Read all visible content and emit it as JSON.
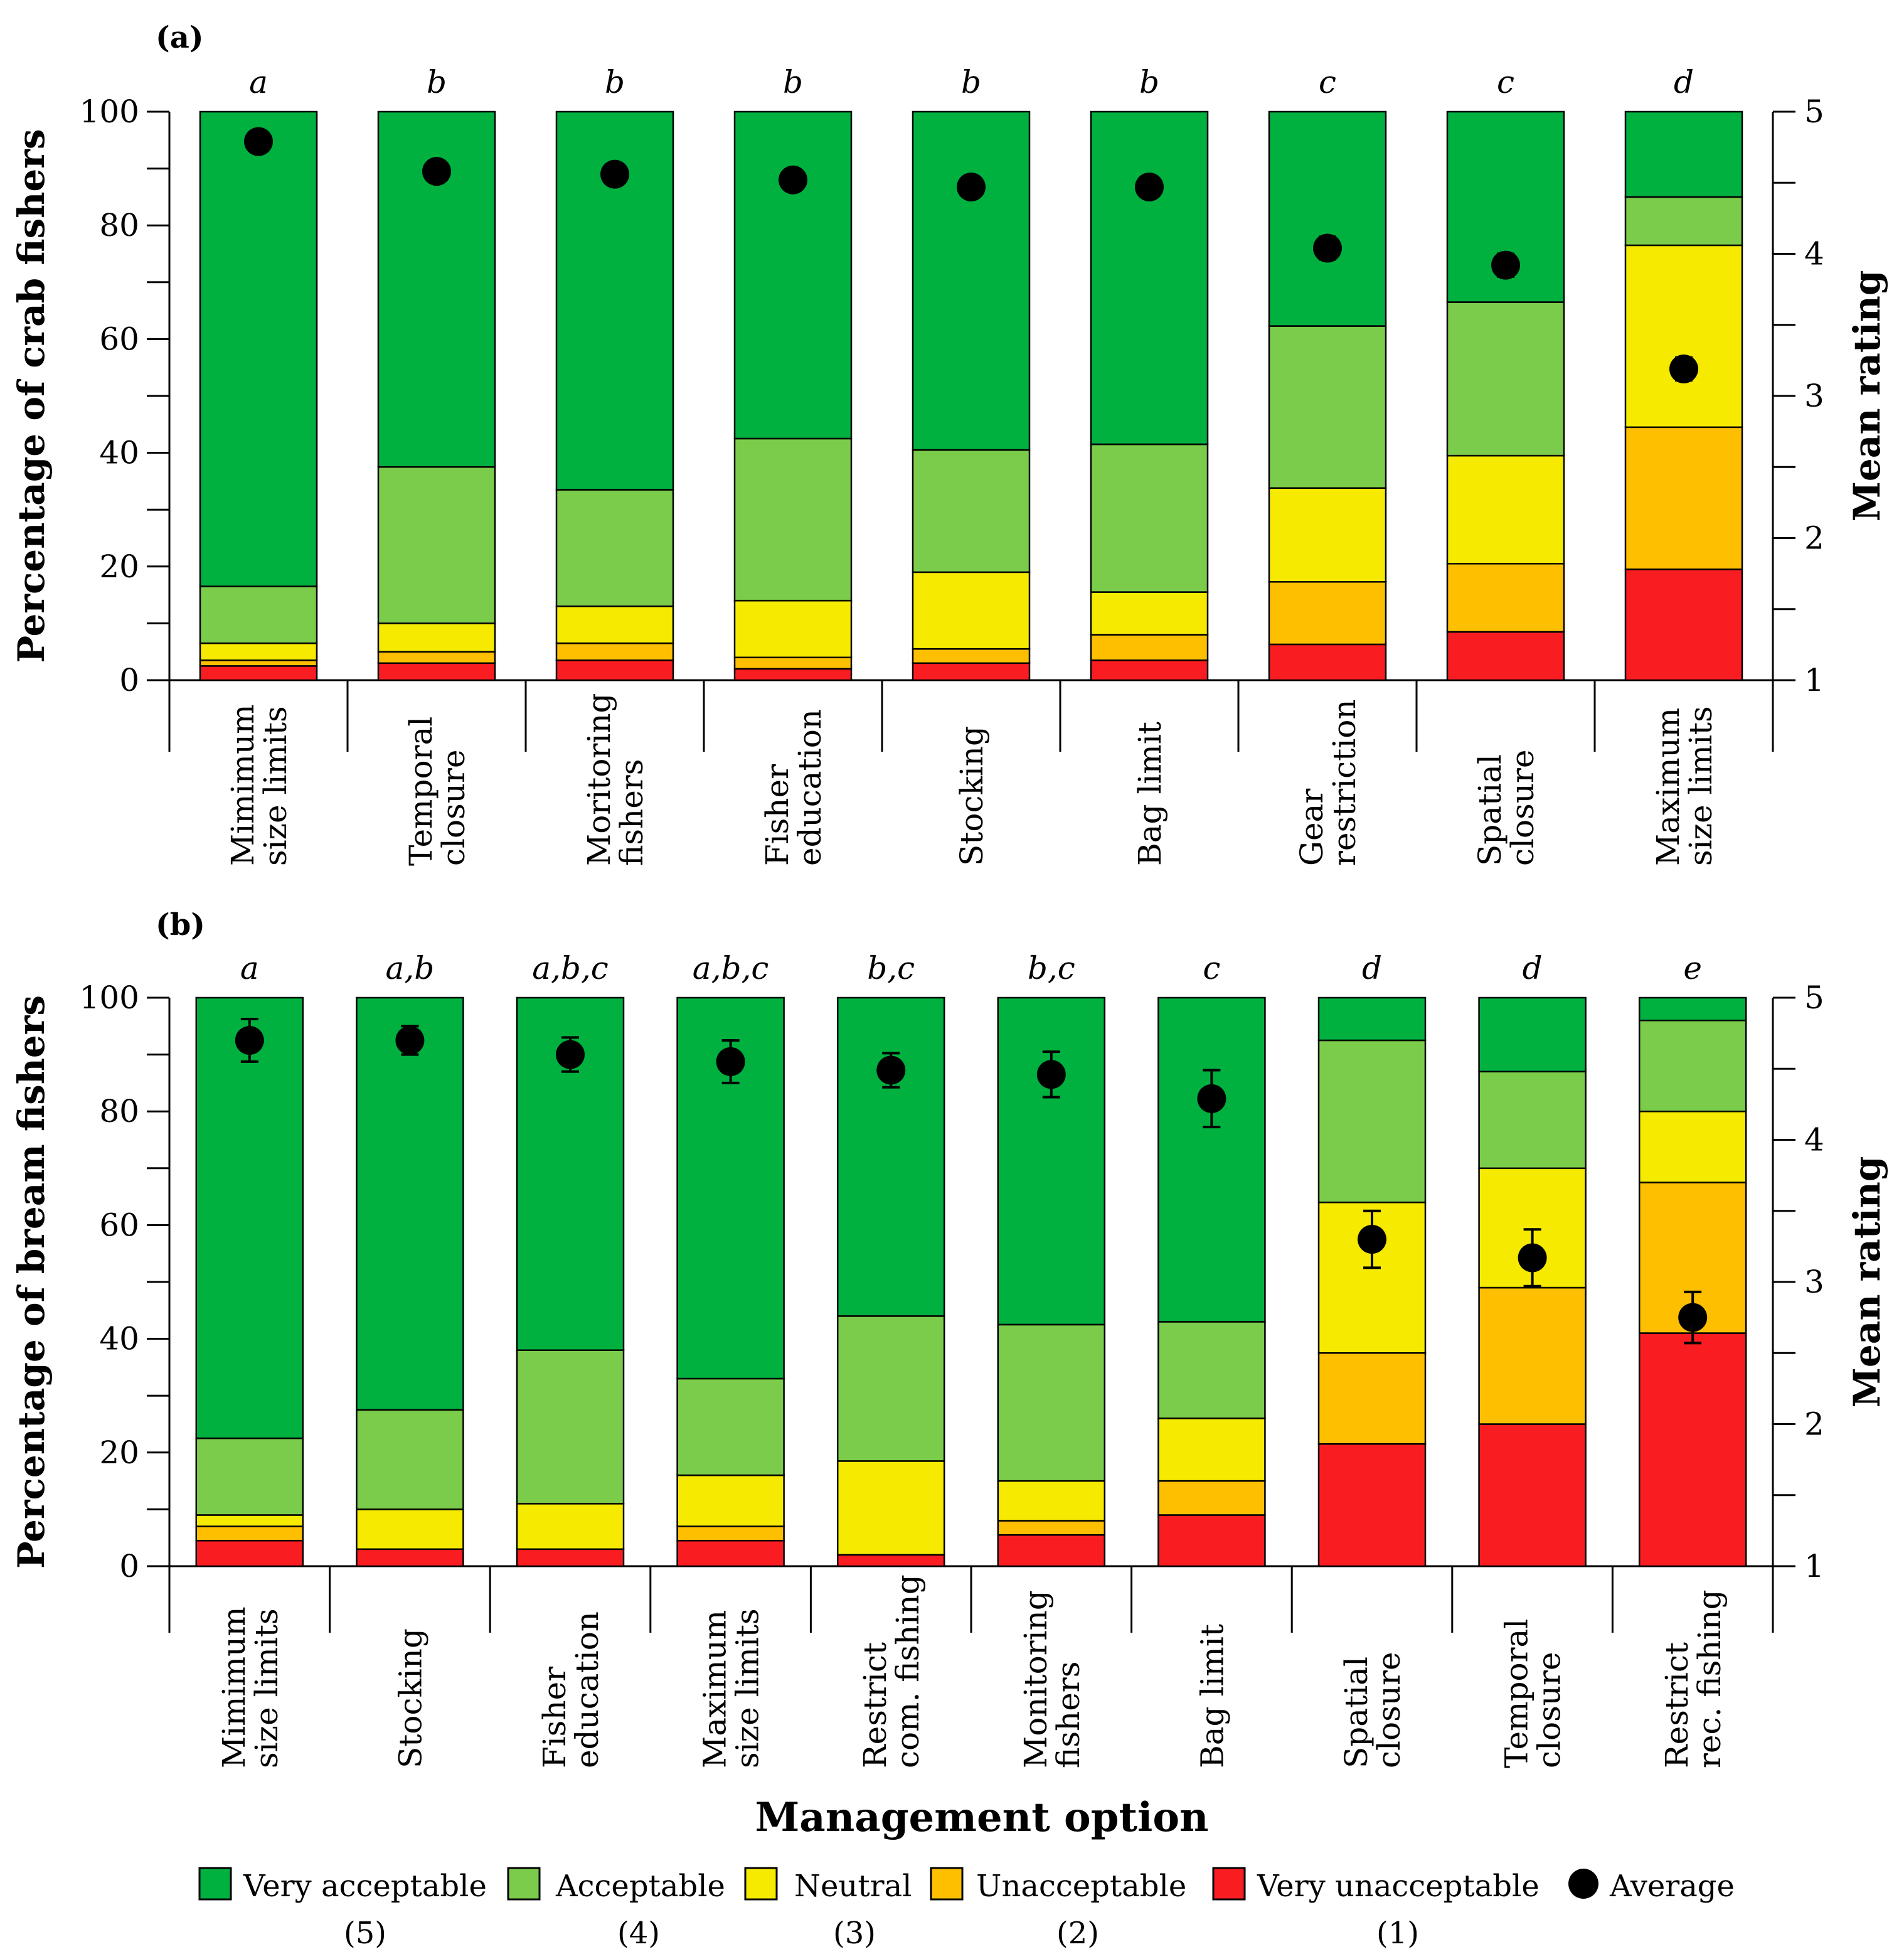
{
  "figure": {
    "x_title": "Management option",
    "legend": [
      {
        "label": "Very acceptable",
        "sub": "(5)",
        "color": "#00b140"
      },
      {
        "label": "Acceptable",
        "sub": "(4)",
        "color": "#7acc4a"
      },
      {
        "label": "Neutral",
        "sub": "(3)",
        "color": "#f6ea00"
      },
      {
        "label": "Unacceptable",
        "sub": "(2)",
        "color": "#fdbf00"
      },
      {
        "label": "Very unacceptable",
        "sub": "(1)",
        "color": "#f91d22"
      },
      {
        "label": "Average",
        "sub": "",
        "color": "#000000"
      }
    ]
  },
  "chart_data": [
    {
      "type": "bar",
      "panel_label": "(a)",
      "ylabel": "Percentage of crab fishers",
      "ylabel_right": "Mean rating",
      "ylim": [
        0,
        100
      ],
      "y2lim": [
        1,
        5
      ],
      "yticks": [
        "0",
        "20",
        "40",
        "60",
        "80",
        "100"
      ],
      "y2ticks": [
        "1",
        "2",
        "3",
        "4",
        "5"
      ],
      "categories": [
        [
          "Mimimum",
          "size limits"
        ],
        [
          "Temporal",
          "closure"
        ],
        [
          "Moritoring",
          "fishers"
        ],
        [
          "Fisher",
          "education"
        ],
        [
          "Stocking"
        ],
        [
          "Bag limit"
        ],
        [
          "Gear",
          "restriction"
        ],
        [
          "Spatial",
          "closure"
        ],
        [
          "Maximum",
          "size limits"
        ]
      ],
      "letters": [
        "a",
        "b",
        "b",
        "b",
        "b",
        "b",
        "c",
        "c",
        "d"
      ],
      "series": [
        {
          "name": "Very unacceptable",
          "values": [
            2.5,
            3,
            3.5,
            2,
            3,
            3.5,
            6.3,
            8.5,
            19.5
          ]
        },
        {
          "name": "Unacceptable",
          "values": [
            1,
            2,
            3,
            2,
            2.5,
            4.5,
            11,
            12,
            25
          ]
        },
        {
          "name": "Neutral",
          "values": [
            3,
            5,
            6.5,
            10,
            13.5,
            7.5,
            16.5,
            19,
            32
          ]
        },
        {
          "name": "Acceptable",
          "values": [
            10,
            27.5,
            20.5,
            28.5,
            21.5,
            26,
            28.5,
            27,
            8.5
          ]
        },
        {
          "name": "Very acceptable",
          "values": [
            83.5,
            62.5,
            66.5,
            57.5,
            59.5,
            58.5,
            37.7,
            33.5,
            15
          ]
        }
      ],
      "mean": [
        4.79,
        4.58,
        4.56,
        4.52,
        4.47,
        4.47,
        4.04,
        3.92,
        3.19
      ],
      "mean_err": [
        0.03,
        0.04,
        0.04,
        0.04,
        0.04,
        0.04,
        0.08,
        0.08,
        0.08
      ]
    },
    {
      "type": "bar",
      "panel_label": "(b)",
      "ylabel": "Percentage of bream fishers",
      "ylabel_right": "Mean rating",
      "ylim": [
        0,
        100
      ],
      "y2lim": [
        1,
        5
      ],
      "yticks": [
        "0",
        "20",
        "40",
        "60",
        "80",
        "100"
      ],
      "y2ticks": [
        "1",
        "2",
        "3",
        "4",
        "5"
      ],
      "categories": [
        [
          "Mimimum",
          "size limits"
        ],
        [
          "Stocking"
        ],
        [
          "Fisher",
          "education"
        ],
        [
          "Maximum",
          "size limits"
        ],
        [
          "Restrict",
          "com. fishing"
        ],
        [
          "Monitoring",
          "fishers"
        ],
        [
          "Bag limit"
        ],
        [
          "Spatial",
          "closure"
        ],
        [
          "Temporal",
          "closure"
        ],
        [
          "Restrict",
          "rec. fishing"
        ]
      ],
      "letters": [
        "a",
        "a,b",
        "a,b,c",
        "a,b,c",
        "b,c",
        "b,c",
        "c",
        "d",
        "d",
        "e"
      ],
      "series": [
        {
          "name": "Very unacceptable",
          "values": [
            4.5,
            3,
            3,
            4.5,
            2,
            5.5,
            9,
            21.5,
            25,
            41
          ]
        },
        {
          "name": "Unacceptable",
          "values": [
            2.5,
            0,
            0,
            2.5,
            0,
            2.5,
            6,
            16,
            24,
            26.5
          ]
        },
        {
          "name": "Neutral",
          "values": [
            2,
            7,
            8,
            9,
            16.5,
            7,
            11,
            26.5,
            21,
            12.5
          ]
        },
        {
          "name": "Acceptable",
          "values": [
            13.5,
            17.5,
            27,
            17,
            25.5,
            27.5,
            17,
            28.5,
            17,
            16
          ]
        },
        {
          "name": "Very acceptable",
          "values": [
            77.5,
            72.5,
            62,
            67,
            56,
            57.5,
            57,
            7.5,
            13,
            4
          ]
        }
      ],
      "mean": [
        4.7,
        4.7,
        4.6,
        4.55,
        4.49,
        4.46,
        4.29,
        3.3,
        3.17,
        2.75
      ],
      "mean_err": [
        0.15,
        0.1,
        0.12,
        0.15,
        0.12,
        0.16,
        0.2,
        0.2,
        0.2,
        0.18
      ]
    }
  ]
}
